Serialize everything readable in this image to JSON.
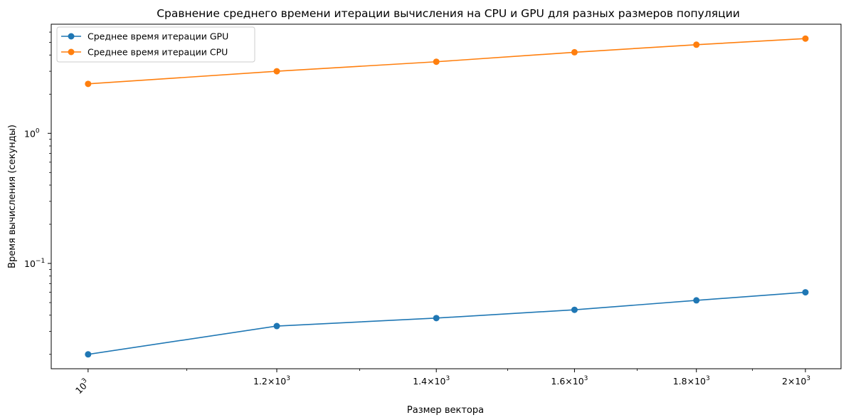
{
  "chart_data": {
    "type": "line",
    "title": "Сравнение среднего времени итерации вычисления на CPU и GPU для разных размеров популяции",
    "xlabel": "Размер вектора",
    "ylabel": "Время вычисления (секунды)",
    "x_scale": "log",
    "y_scale": "log",
    "x": [
      1000,
      1200,
      1400,
      1600,
      1800,
      2000
    ],
    "xlim": [
      965,
      2070
    ],
    "ylim": [
      0.0155,
      6.9
    ],
    "x_ticks": [
      {
        "value": 1000,
        "base": "10",
        "exp": "3"
      },
      {
        "value": 1200,
        "base": "1.2×10",
        "exp": "3"
      },
      {
        "value": 1400,
        "base": "1.4×10",
        "exp": "3"
      },
      {
        "value": 1600,
        "base": "1.6×10",
        "exp": "3"
      },
      {
        "value": 1800,
        "base": "1.8×10",
        "exp": "3"
      },
      {
        "value": 2000,
        "base": "2×10",
        "exp": "3"
      }
    ],
    "y_ticks": [
      {
        "value": 0.1,
        "base": "10",
        "exp": "−1"
      },
      {
        "value": 1,
        "base": "10",
        "exp": "0"
      }
    ],
    "grid": false,
    "legend_position": "top-left",
    "series": [
      {
        "name": "Среднее время итерации GPU",
        "color": "#1f77b4",
        "values": [
          0.02,
          0.033,
          0.038,
          0.044,
          0.052,
          0.06
        ]
      },
      {
        "name": "Среднее время итерации CPU",
        "color": "#ff7f0e",
        "values": [
          2.4,
          3.0,
          3.55,
          4.2,
          4.8,
          5.35
        ]
      }
    ]
  }
}
